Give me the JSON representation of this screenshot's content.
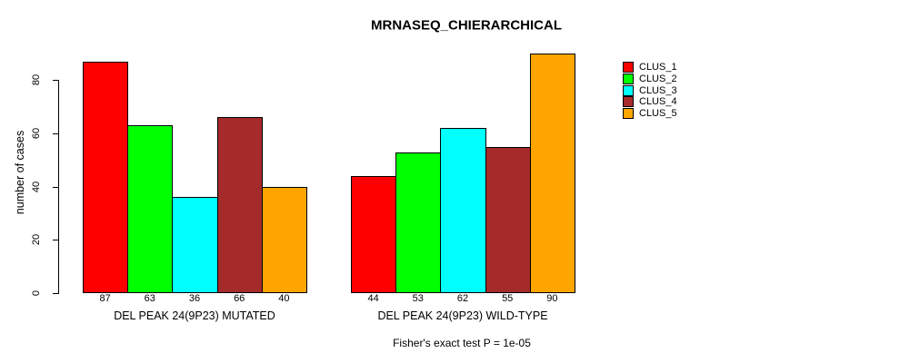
{
  "chart_data": {
    "type": "bar",
    "title": "MRNASEQ_CHIERARCHICAL",
    "ylabel": "number of cases",
    "xlabel": "",
    "ylim": [
      0,
      90
    ],
    "yticks": [
      0,
      20,
      40,
      60,
      80
    ],
    "grid": false,
    "legend_position": "right",
    "bar_border_color": "#000000",
    "text_color": "#000000",
    "background_color": "#ffffff",
    "series": [
      {
        "name": "CLUS_1",
        "color": "#FF0000"
      },
      {
        "name": "CLUS_2",
        "color": "#00FF00"
      },
      {
        "name": "CLUS_3",
        "color": "#00FFFF"
      },
      {
        "name": "CLUS_4",
        "color": "#A52A2A"
      },
      {
        "name": "CLUS_5",
        "color": "#FFA500"
      }
    ],
    "groups": [
      {
        "label": "DEL PEAK 24(9P23) MUTATED",
        "values": [
          87,
          63,
          36,
          66,
          40
        ]
      },
      {
        "label": "DEL PEAK 24(9P23) WILD-TYPE",
        "values": [
          44,
          53,
          62,
          55,
          90
        ]
      }
    ],
    "bar_value_labels_shown": true,
    "caption": "Fisher's exact test P = 1e-05"
  }
}
